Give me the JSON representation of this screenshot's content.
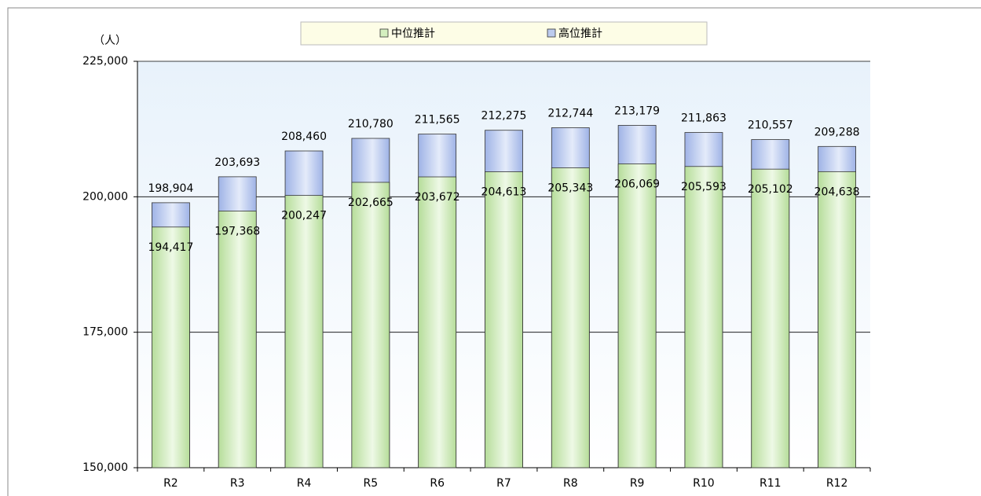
{
  "chart_data": {
    "type": "bar",
    "y_label": "（人）",
    "categories": [
      "R2",
      "R3",
      "R4",
      "R5",
      "R6",
      "R7",
      "R8",
      "R9",
      "R10",
      "R11",
      "R12"
    ],
    "series": [
      {
        "name": "中位推計",
        "color": "#d4efbf",
        "values": [
          194417,
          197368,
          200247,
          202665,
          203672,
          204613,
          205343,
          206069,
          205593,
          205102,
          204638
        ],
        "value_labels": [
          "194,417",
          "197,368",
          "200,247",
          "202,665",
          "203,672",
          "204,613",
          "205,343",
          "206,069",
          "205,593",
          "205,102",
          "204,638"
        ]
      },
      {
        "name": "高位推計",
        "color": "#bccbee",
        "values": [
          198904,
          203693,
          208460,
          210780,
          211565,
          212275,
          212744,
          213179,
          211863,
          210557,
          209288
        ],
        "value_labels": [
          "198,904",
          "203,693",
          "208,460",
          "210,780",
          "211,565",
          "212,275",
          "212,744",
          "213,179",
          "211,863",
          "210,557",
          "209,288"
        ]
      }
    ],
    "ylim": [
      150000,
      225000
    ],
    "yticks": [
      {
        "value": 150000,
        "label": "150,000"
      },
      {
        "value": 175000,
        "label": "175,000"
      },
      {
        "value": 200000,
        "label": "200,000"
      },
      {
        "value": 225000,
        "label": "225,000"
      }
    ],
    "grid": true,
    "legend": "top"
  }
}
